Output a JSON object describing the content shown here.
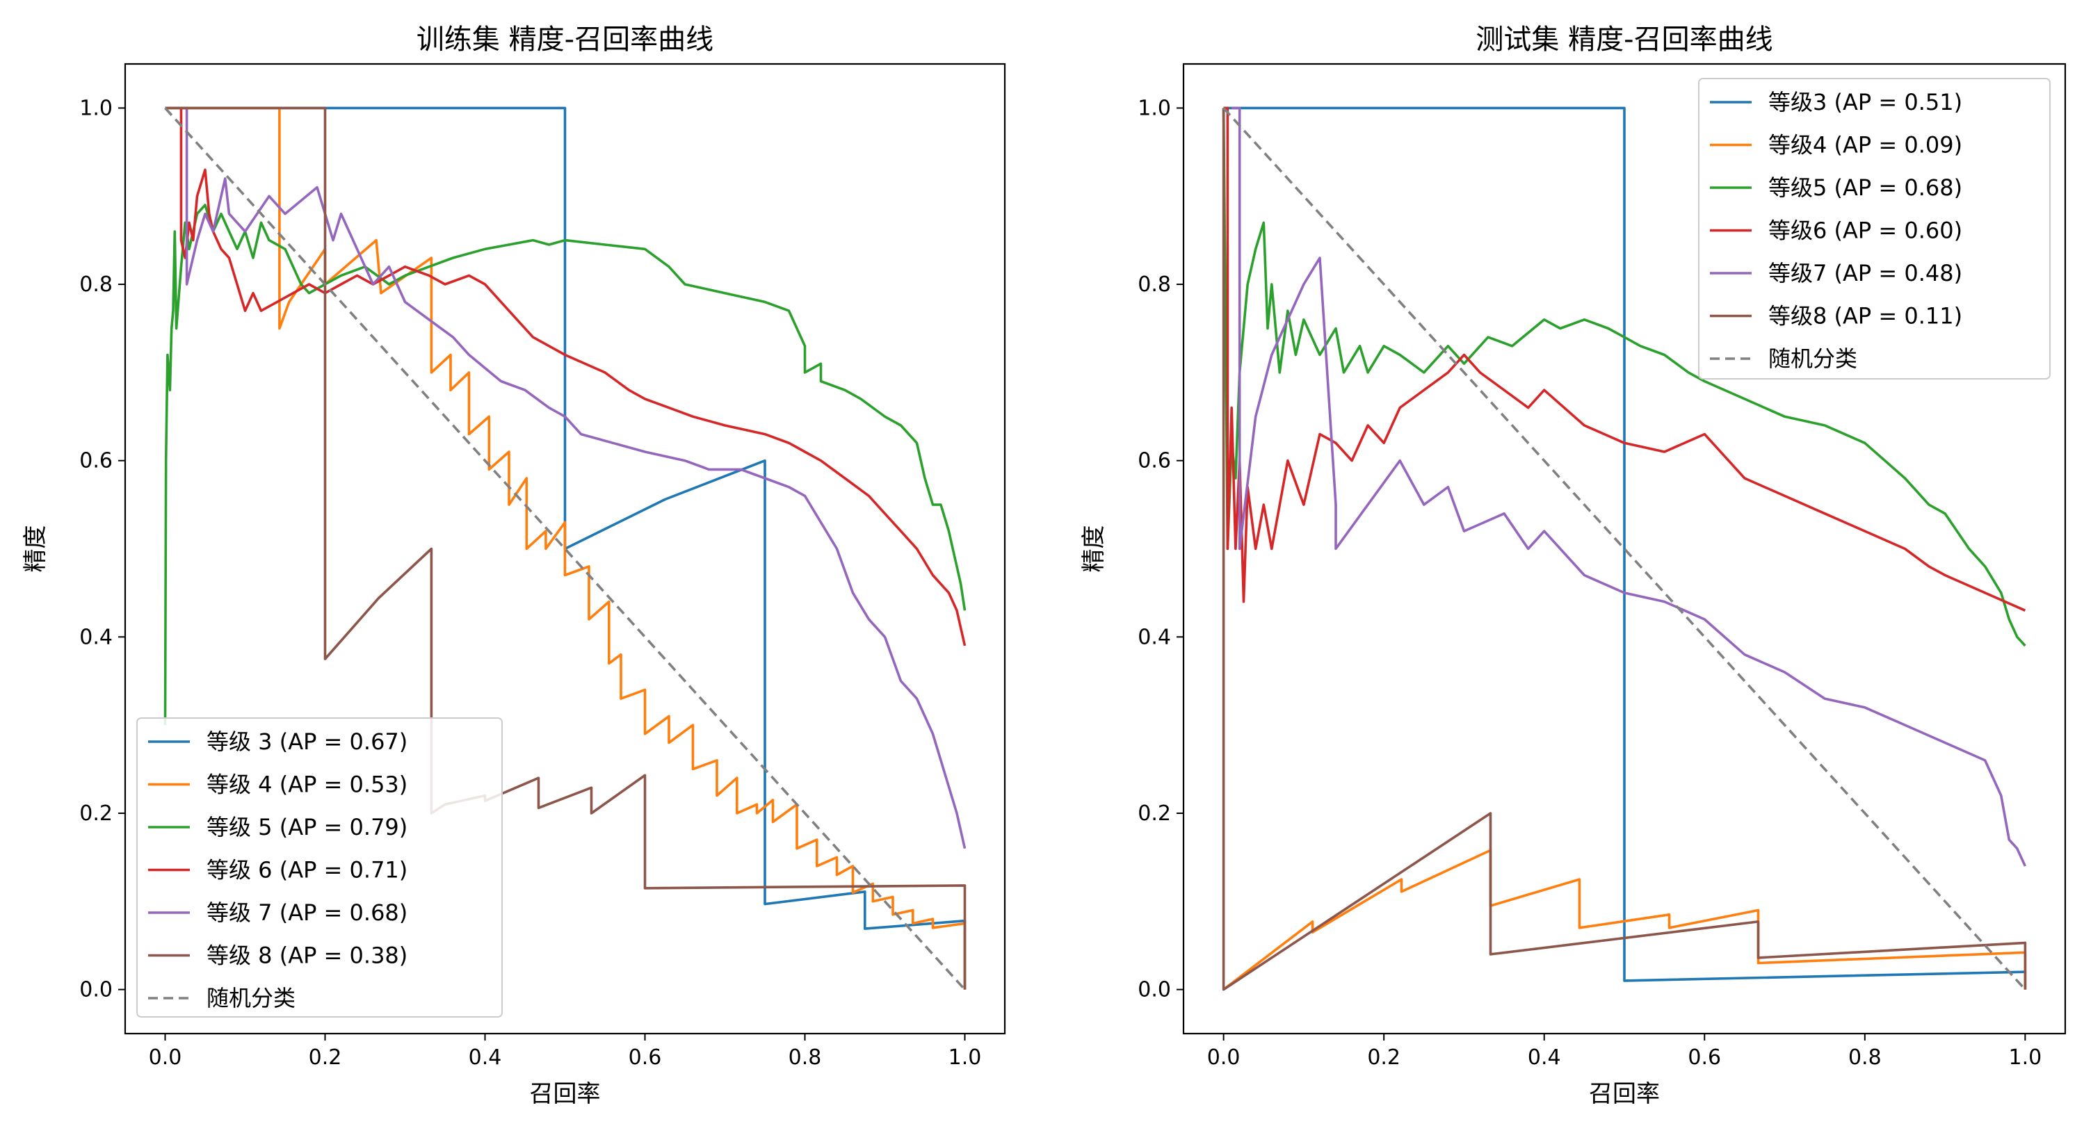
{
  "chart_data": [
    {
      "type": "line",
      "title": "训练集 精度-召回率曲线",
      "xlabel": "召回率",
      "ylabel": "精度",
      "xlim": [
        -0.05,
        1.05
      ],
      "ylim": [
        -0.05,
        1.05
      ],
      "xticks": [
        "0.0",
        "0.2",
        "0.4",
        "0.6",
        "0.8",
        "1.0"
      ],
      "yticks": [
        "0.0",
        "0.2",
        "0.4",
        "0.6",
        "0.8",
        "1.0"
      ],
      "grid": false,
      "legend": "lower-left",
      "series": [
        {
          "name": "等级 3 (AP = 0.67)",
          "color": "#1f77b4",
          "dash": "",
          "x": [
            0,
            0.5,
            0.5,
            0.625,
            0.75,
            0.75,
            0.875,
            0.875,
            1.0,
            1.0
          ],
          "y": [
            1.0,
            1.0,
            0.5,
            0.556,
            0.6,
            0.097,
            0.111,
            0.069,
            0.078,
            0.0
          ]
        },
        {
          "name": "等级 4 (AP = 0.53)",
          "color": "#ff7f0e",
          "dash": "",
          "x": [
            0,
            0.143,
            0.143,
            0.155,
            0.2,
            0.2,
            0.264,
            0.27,
            0.333,
            0.333,
            0.357,
            0.357,
            0.38,
            0.38,
            0.405,
            0.405,
            0.43,
            0.43,
            0.452,
            0.452,
            0.476,
            0.476,
            0.5,
            0.5,
            0.53,
            0.53,
            0.555,
            0.555,
            0.57,
            0.57,
            0.6,
            0.6,
            0.63,
            0.63,
            0.66,
            0.66,
            0.69,
            0.69,
            0.715,
            0.715,
            0.74,
            0.74,
            0.76,
            0.76,
            0.79,
            0.79,
            0.815,
            0.815,
            0.84,
            0.84,
            0.86,
            0.86,
            0.885,
            0.885,
            0.91,
            0.91,
            0.935,
            0.935,
            0.96,
            0.96,
            1.0,
            1.0
          ],
          "y": [
            1.0,
            1.0,
            0.75,
            0.78,
            0.84,
            0.8,
            0.85,
            0.79,
            0.83,
            0.7,
            0.72,
            0.68,
            0.7,
            0.63,
            0.65,
            0.59,
            0.61,
            0.55,
            0.58,
            0.5,
            0.52,
            0.5,
            0.53,
            0.47,
            0.48,
            0.42,
            0.44,
            0.37,
            0.38,
            0.33,
            0.34,
            0.29,
            0.31,
            0.28,
            0.3,
            0.25,
            0.26,
            0.22,
            0.24,
            0.2,
            0.21,
            0.2,
            0.215,
            0.19,
            0.21,
            0.16,
            0.17,
            0.14,
            0.15,
            0.13,
            0.14,
            0.11,
            0.12,
            0.1,
            0.105,
            0.085,
            0.09,
            0.075,
            0.08,
            0.07,
            0.075,
            0.0
          ]
        },
        {
          "name": "等级 5 (AP = 0.79)",
          "color": "#2ca02c",
          "dash": "",
          "x": [
            0,
            0.001,
            0.003,
            0.006,
            0.008,
            0.01,
            0.012,
            0.014,
            0.02,
            0.025,
            0.03,
            0.04,
            0.05,
            0.06,
            0.07,
            0.08,
            0.09,
            0.1,
            0.11,
            0.12,
            0.13,
            0.15,
            0.16,
            0.17,
            0.18,
            0.2,
            0.22,
            0.25,
            0.28,
            0.3,
            0.33,
            0.36,
            0.4,
            0.43,
            0.46,
            0.48,
            0.5,
            0.55,
            0.6,
            0.63,
            0.65,
            0.7,
            0.75,
            0.78,
            0.8,
            0.8,
            0.82,
            0.82,
            0.85,
            0.87,
            0.9,
            0.92,
            0.94,
            0.95,
            0.96,
            0.97,
            0.98,
            0.985,
            0.99,
            0.995,
            1.0
          ],
          "y": [
            0.3,
            0.6,
            0.72,
            0.68,
            0.75,
            0.77,
            0.86,
            0.75,
            0.82,
            0.87,
            0.84,
            0.88,
            0.89,
            0.86,
            0.88,
            0.86,
            0.84,
            0.86,
            0.83,
            0.87,
            0.85,
            0.84,
            0.82,
            0.8,
            0.79,
            0.8,
            0.81,
            0.82,
            0.8,
            0.81,
            0.82,
            0.83,
            0.84,
            0.845,
            0.85,
            0.845,
            0.85,
            0.845,
            0.84,
            0.82,
            0.8,
            0.79,
            0.78,
            0.77,
            0.73,
            0.7,
            0.71,
            0.69,
            0.68,
            0.67,
            0.65,
            0.64,
            0.62,
            0.58,
            0.55,
            0.55,
            0.52,
            0.5,
            0.48,
            0.46,
            0.43
          ]
        },
        {
          "name": "等级 6 (AP = 0.71)",
          "color": "#d62728",
          "dash": "",
          "x": [
            0.02,
            0.02,
            0.025,
            0.03,
            0.035,
            0.04,
            0.05,
            0.055,
            0.06,
            0.07,
            0.08,
            0.09,
            0.1,
            0.11,
            0.12,
            0.14,
            0.16,
            0.18,
            0.2,
            0.22,
            0.24,
            0.26,
            0.28,
            0.3,
            0.33,
            0.35,
            0.38,
            0.4,
            0.42,
            0.44,
            0.46,
            0.5,
            0.55,
            0.58,
            0.6,
            0.63,
            0.66,
            0.7,
            0.75,
            0.78,
            0.8,
            0.82,
            0.85,
            0.88,
            0.9,
            0.92,
            0.94,
            0.96,
            0.98,
            0.99,
            1.0
          ],
          "y": [
            1.0,
            0.85,
            0.83,
            0.87,
            0.85,
            0.9,
            0.93,
            0.88,
            0.86,
            0.84,
            0.83,
            0.8,
            0.77,
            0.79,
            0.77,
            0.78,
            0.79,
            0.8,
            0.79,
            0.8,
            0.81,
            0.8,
            0.81,
            0.82,
            0.81,
            0.8,
            0.81,
            0.8,
            0.78,
            0.76,
            0.74,
            0.72,
            0.7,
            0.68,
            0.67,
            0.66,
            0.65,
            0.64,
            0.63,
            0.62,
            0.61,
            0.6,
            0.58,
            0.56,
            0.54,
            0.52,
            0.5,
            0.47,
            0.45,
            0.43,
            0.39
          ]
        },
        {
          "name": "等级 7 (AP = 0.68)",
          "color": "#9467bd",
          "dash": "",
          "x": [
            0.022,
            0.027,
            0.027,
            0.04,
            0.05,
            0.06,
            0.075,
            0.08,
            0.1,
            0.13,
            0.15,
            0.19,
            0.2,
            0.21,
            0.22,
            0.24,
            0.26,
            0.28,
            0.3,
            0.33,
            0.36,
            0.38,
            0.42,
            0.45,
            0.48,
            0.5,
            0.52,
            0.56,
            0.6,
            0.65,
            0.68,
            0.72,
            0.75,
            0.78,
            0.8,
            0.82,
            0.84,
            0.86,
            0.88,
            0.9,
            0.92,
            0.94,
            0.96,
            0.98,
            0.99,
            1.0
          ],
          "y": [
            1.0,
            1.0,
            0.8,
            0.85,
            0.88,
            0.86,
            0.92,
            0.88,
            0.86,
            0.9,
            0.88,
            0.91,
            0.88,
            0.85,
            0.88,
            0.84,
            0.8,
            0.82,
            0.78,
            0.76,
            0.74,
            0.72,
            0.69,
            0.68,
            0.66,
            0.65,
            0.63,
            0.62,
            0.61,
            0.6,
            0.59,
            0.59,
            0.58,
            0.57,
            0.56,
            0.53,
            0.5,
            0.45,
            0.42,
            0.4,
            0.35,
            0.33,
            0.29,
            0.23,
            0.2,
            0.16
          ]
        },
        {
          "name": "等级 8 (AP = 0.38)",
          "color": "#8c564b",
          "dash": "",
          "x": [
            0,
            0.2,
            0.2,
            0.267,
            0.333,
            0.333,
            0.35,
            0.4,
            0.4,
            0.467,
            0.467,
            0.533,
            0.533,
            0.6,
            0.6,
            1.0,
            1.0
          ],
          "y": [
            1.0,
            1.0,
            0.375,
            0.444,
            0.5,
            0.2,
            0.21,
            0.22,
            0.214,
            0.24,
            0.206,
            0.229,
            0.2,
            0.243,
            0.115,
            0.118,
            0.0
          ]
        },
        {
          "name": "随机分类",
          "color": "#808080",
          "dash": "14,8",
          "x": [
            0,
            1
          ],
          "y": [
            1,
            0
          ]
        }
      ]
    },
    {
      "type": "line",
      "title": "测试集 精度-召回率曲线",
      "xlabel": "召回率",
      "ylabel": "精度",
      "xlim": [
        -0.05,
        1.05
      ],
      "ylim": [
        -0.05,
        1.05
      ],
      "xticks": [
        "0.0",
        "0.2",
        "0.4",
        "0.6",
        "0.8",
        "1.0"
      ],
      "yticks": [
        "0.0",
        "0.2",
        "0.4",
        "0.6",
        "0.8",
        "1.0"
      ],
      "grid": false,
      "legend": "upper-right",
      "series": [
        {
          "name": "等级3 (AP = 0.51)",
          "color": "#1f77b4",
          "dash": "",
          "x": [
            0,
            0.5,
            0.5,
            1.0,
            1.0
          ],
          "y": [
            1.0,
            1.0,
            0.01,
            0.02,
            0.0
          ]
        },
        {
          "name": "等级4 (AP = 0.09)",
          "color": "#ff7f0e",
          "dash": "",
          "x": [
            0,
            0.111,
            0.111,
            0.222,
            0.222,
            0.333,
            0.333,
            0.444,
            0.444,
            0.556,
            0.556,
            0.667,
            0.667,
            1.0,
            1.0
          ],
          "y": [
            0.0,
            0.077,
            0.065,
            0.125,
            0.111,
            0.158,
            0.095,
            0.125,
            0.07,
            0.085,
            0.07,
            0.09,
            0.03,
            0.042,
            0.0
          ]
        },
        {
          "name": "等级5 (AP = 0.68)",
          "color": "#2ca02c",
          "dash": "",
          "x": [
            0,
            0.005,
            0.01,
            0.015,
            0.02,
            0.03,
            0.04,
            0.05,
            0.055,
            0.06,
            0.07,
            0.08,
            0.09,
            0.1,
            0.12,
            0.14,
            0.15,
            0.17,
            0.18,
            0.2,
            0.22,
            0.25,
            0.28,
            0.3,
            0.33,
            0.36,
            0.4,
            0.42,
            0.45,
            0.48,
            0.5,
            0.52,
            0.55,
            0.58,
            0.6,
            0.65,
            0.7,
            0.75,
            0.8,
            0.85,
            0.88,
            0.9,
            0.93,
            0.95,
            0.97,
            0.98,
            0.99,
            1.0
          ],
          "y": [
            1.0,
            0.5,
            0.62,
            0.58,
            0.7,
            0.8,
            0.84,
            0.87,
            0.75,
            0.8,
            0.7,
            0.77,
            0.72,
            0.76,
            0.72,
            0.75,
            0.7,
            0.73,
            0.7,
            0.73,
            0.72,
            0.7,
            0.73,
            0.71,
            0.74,
            0.73,
            0.76,
            0.75,
            0.76,
            0.75,
            0.74,
            0.73,
            0.72,
            0.7,
            0.69,
            0.67,
            0.65,
            0.64,
            0.62,
            0.58,
            0.55,
            0.54,
            0.5,
            0.48,
            0.45,
            0.42,
            0.4,
            0.39
          ]
        },
        {
          "name": "等级6 (AP = 0.60)",
          "color": "#d62728",
          "dash": "",
          "x": [
            0,
            0.005,
            0.005,
            0.01,
            0.015,
            0.02,
            0.025,
            0.03,
            0.04,
            0.05,
            0.06,
            0.08,
            0.1,
            0.12,
            0.14,
            0.16,
            0.18,
            0.2,
            0.22,
            0.25,
            0.28,
            0.3,
            0.32,
            0.35,
            0.38,
            0.4,
            0.45,
            0.5,
            0.55,
            0.6,
            0.63,
            0.65,
            0.7,
            0.75,
            0.8,
            0.85,
            0.88,
            0.9,
            0.95,
            1.0
          ],
          "y": [
            1.0,
            1.0,
            0.5,
            0.66,
            0.5,
            0.6,
            0.44,
            0.57,
            0.5,
            0.55,
            0.5,
            0.6,
            0.55,
            0.63,
            0.62,
            0.6,
            0.64,
            0.62,
            0.66,
            0.68,
            0.7,
            0.72,
            0.7,
            0.68,
            0.66,
            0.68,
            0.64,
            0.62,
            0.61,
            0.63,
            0.6,
            0.58,
            0.56,
            0.54,
            0.52,
            0.5,
            0.48,
            0.47,
            0.45,
            0.43
          ]
        },
        {
          "name": "等级7 (AP = 0.48)",
          "color": "#9467bd",
          "dash": "",
          "x": [
            0.01,
            0.02,
            0.02,
            0.04,
            0.06,
            0.08,
            0.1,
            0.12,
            0.14,
            0.14,
            0.18,
            0.22,
            0.25,
            0.28,
            0.3,
            0.35,
            0.38,
            0.4,
            0.45,
            0.5,
            0.55,
            0.6,
            0.65,
            0.7,
            0.75,
            0.8,
            0.85,
            0.9,
            0.95,
            0.97,
            0.98,
            0.99,
            1.0
          ],
          "y": [
            1.0,
            1.0,
            0.5,
            0.65,
            0.72,
            0.76,
            0.8,
            0.83,
            0.55,
            0.5,
            0.55,
            0.6,
            0.55,
            0.57,
            0.52,
            0.54,
            0.5,
            0.52,
            0.47,
            0.45,
            0.44,
            0.42,
            0.38,
            0.36,
            0.33,
            0.32,
            0.3,
            0.28,
            0.26,
            0.22,
            0.17,
            0.16,
            0.14
          ]
        },
        {
          "name": "等级8 (AP = 0.11)",
          "color": "#8c564b",
          "dash": "",
          "x": [
            0,
            0,
            0.333,
            0.333,
            0.667,
            0.667,
            1.0,
            1.0
          ],
          "y": [
            1.0,
            0.0,
            0.2,
            0.04,
            0.077,
            0.036,
            0.053,
            0.0
          ]
        },
        {
          "name": "随机分类",
          "color": "#808080",
          "dash": "14,8",
          "x": [
            0,
            1
          ],
          "y": [
            1,
            0
          ]
        }
      ]
    }
  ]
}
